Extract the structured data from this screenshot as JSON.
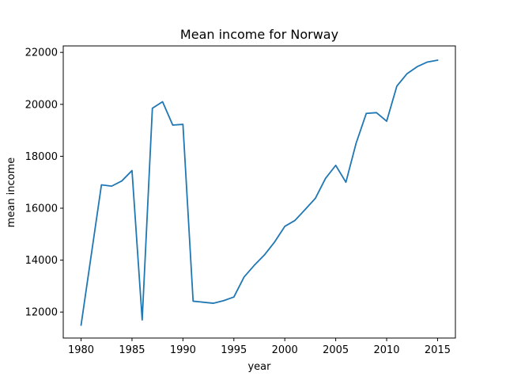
{
  "chart_data": {
    "type": "line",
    "title": "Mean income for Norway",
    "xlabel": "year",
    "ylabel": "mean income",
    "xlim": [
      1978.25,
      2016.75
    ],
    "ylim": [
      11000,
      22250
    ],
    "grid": false,
    "legend": "none",
    "x_ticks": [
      1980,
      1985,
      1990,
      1995,
      2000,
      2005,
      2010,
      2015
    ],
    "y_ticks": [
      12000,
      14000,
      16000,
      18000,
      20000,
      22000
    ],
    "line_color": "#1f77b4",
    "series": [
      {
        "x": [
          1980,
          1982,
          1983,
          1984,
          1985,
          1986,
          1987,
          1988,
          1989,
          1990,
          1991,
          1993,
          1994,
          1995,
          1996,
          1997,
          1998,
          1999,
          2000,
          2001,
          2002,
          2003,
          2004,
          2005,
          2006,
          2007,
          2008,
          2009,
          2010,
          2011,
          2012,
          2013,
          2014,
          2015
        ],
        "y": [
          11500,
          16900,
          16850,
          17050,
          17450,
          11700,
          19850,
          20100,
          19200,
          19230,
          12420,
          12340,
          12440,
          12580,
          13350,
          13800,
          14200,
          14700,
          15300,
          15530,
          15950,
          16380,
          17150,
          17650,
          17000,
          18500,
          19650,
          19680,
          19350,
          20700,
          21180,
          21450,
          21630,
          21700
        ]
      }
    ]
  }
}
